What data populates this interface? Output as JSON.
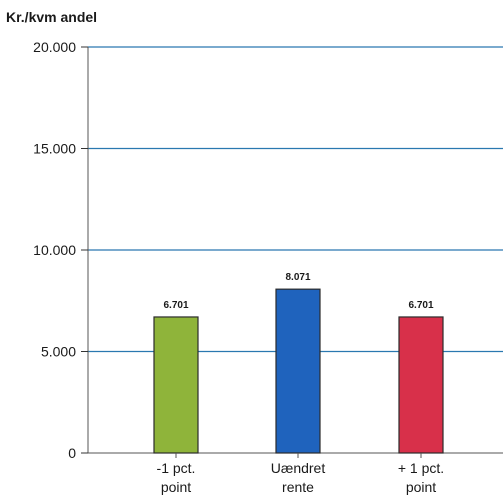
{
  "chart_data": {
    "type": "bar",
    "ylabel": "Kr./kvm andel",
    "ylim": [
      0,
      20000
    ],
    "yticks": [
      0,
      5000,
      10000,
      15000,
      20000
    ],
    "ytick_labels": [
      "0",
      "5.000",
      "10.000",
      "15.000",
      "20.000"
    ],
    "grid": true,
    "categories": [
      [
        "-1 pct.",
        "point"
      ],
      [
        "Uændret",
        "rente"
      ],
      [
        "+ 1 pct.",
        "point"
      ]
    ],
    "values": [
      6701,
      8071,
      6701
    ],
    "data_labels": [
      "6.701",
      "8.071",
      "6.701"
    ],
    "colors": [
      "#8fb43a",
      "#1f63bd",
      "#d8304a"
    ],
    "gridline_color": "#2a78b0"
  }
}
